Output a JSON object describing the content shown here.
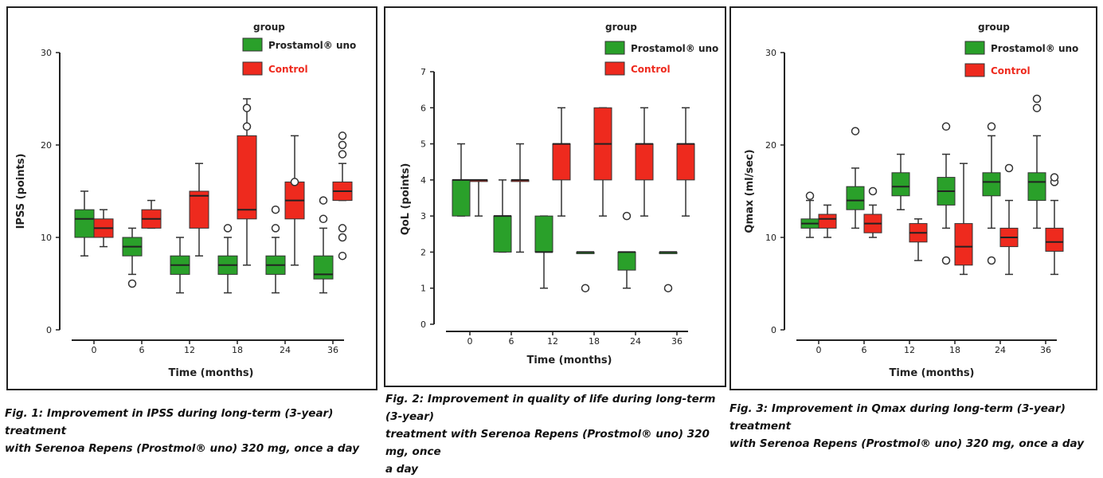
{
  "colors": {
    "prostamol": "#2aa02a",
    "control": "#ee2a1e",
    "axis": "#222222"
  },
  "panels": [
    {
      "legend": {
        "title": "group",
        "items": [
          "Prostamol® uno",
          "Control"
        ]
      },
      "caption_lines": [
        "Fig. 1: Improvement in IPSS during long-term (3-year) treatment",
        "with Serenoa Repens (Prostmol® uno) 320 mg, once a day"
      ]
    },
    {
      "legend": {
        "title": "group",
        "items": [
          "Prostamol® uno",
          "Control"
        ]
      },
      "caption_lines": [
        "Fig. 2: Improvement in quality of life during long-term (3-year)",
        "treatment with Serenoa Repens (Prostmol® uno) 320 mg, once",
        "a day"
      ]
    },
    {
      "legend": {
        "title": "group",
        "items": [
          "Prostamol® uno",
          "Control"
        ]
      },
      "caption_lines": [
        "Fig. 3: Improvement in Qmax during long-term (3-year) treatment",
        "with Serenoa Repens (Prostmol® uno) 320 mg, once a day"
      ]
    }
  ],
  "chart_data": [
    {
      "type": "box",
      "xlabel": "Time (months)",
      "ylabel": "IPSS (points)",
      "ylim": [
        0,
        30
      ],
      "yticks": [
        0,
        10,
        20,
        30
      ],
      "categories": [
        "0",
        "6",
        "12",
        "18",
        "24",
        "36"
      ],
      "series": [
        {
          "name": "Prostamol® uno",
          "boxes": [
            {
              "min": 8,
              "q1": 10,
              "median": 12,
              "q3": 13,
              "max": 15,
              "outliers": []
            },
            {
              "min": 6,
              "q1": 8,
              "median": 9,
              "q3": 10,
              "max": 11,
              "outliers": [
                5
              ]
            },
            {
              "min": 4,
              "q1": 6,
              "median": 7,
              "q3": 8,
              "max": 10,
              "outliers": []
            },
            {
              "min": 4,
              "q1": 6,
              "median": 7,
              "q3": 8,
              "max": 10,
              "outliers": [
                11
              ]
            },
            {
              "min": 4,
              "q1": 6,
              "median": 7,
              "q3": 8,
              "max": 10,
              "outliers": [
                11,
                13
              ]
            },
            {
              "min": 4,
              "q1": 5.5,
              "median": 6,
              "q3": 8,
              "max": 11,
              "outliers": [
                12,
                14
              ]
            }
          ]
        },
        {
          "name": "Control",
          "boxes": [
            {
              "min": 9,
              "q1": 10,
              "median": 11,
              "q3": 12,
              "max": 13,
              "outliers": []
            },
            {
              "min": 11,
              "q1": 11,
              "median": 12,
              "q3": 13,
              "max": 14,
              "outliers": []
            },
            {
              "min": 8,
              "q1": 11,
              "median": 14.5,
              "q3": 15,
              "max": 18,
              "outliers": []
            },
            {
              "min": 7,
              "q1": 12,
              "median": 13,
              "q3": 21,
              "max": 25,
              "outliers": [
                22,
                24
              ]
            },
            {
              "min": 7,
              "q1": 12,
              "median": 14,
              "q3": 16,
              "max": 21,
              "outliers": [
                16
              ]
            },
            {
              "min": 14,
              "q1": 14,
              "median": 15,
              "q3": 16,
              "max": 18,
              "outliers": [
                8,
                10,
                11,
                19,
                20,
                21
              ]
            }
          ]
        }
      ]
    },
    {
      "type": "box",
      "xlabel": "Time (months)",
      "ylabel": "QoL (points)",
      "ylim": [
        0,
        7
      ],
      "yticks": [
        0,
        1,
        2,
        3,
        4,
        5,
        6,
        7
      ],
      "categories": [
        "0",
        "6",
        "12",
        "18",
        "24",
        "36"
      ],
      "series": [
        {
          "name": "Prostamol® uno",
          "boxes": [
            {
              "min": 3,
              "q1": 3,
              "median": 4,
              "q3": 4,
              "max": 5,
              "outliers": []
            },
            {
              "min": 2,
              "q1": 2,
              "median": 3,
              "q3": 3,
              "max": 4,
              "outliers": []
            },
            {
              "min": 1,
              "q1": 2,
              "median": 2,
              "q3": 3,
              "max": 3,
              "outliers": []
            },
            {
              "min": 2,
              "q1": 2,
              "median": 2,
              "q3": 2,
              "max": 2,
              "outliers": [
                1
              ]
            },
            {
              "min": 1,
              "q1": 1.5,
              "median": 2,
              "q3": 2,
              "max": 2,
              "outliers": [
                3
              ]
            },
            {
              "min": 2,
              "q1": 2,
              "median": 2,
              "q3": 2,
              "max": 2,
              "outliers": [
                1
              ]
            }
          ]
        },
        {
          "name": "Control",
          "boxes": [
            {
              "min": 3,
              "q1": 4,
              "median": 4,
              "q3": 4,
              "max": 4,
              "outliers": []
            },
            {
              "min": 2,
              "q1": 4,
              "median": 4,
              "q3": 4,
              "max": 5,
              "outliers": []
            },
            {
              "min": 3,
              "q1": 4,
              "median": 5,
              "q3": 5,
              "max": 6,
              "outliers": []
            },
            {
              "min": 3,
              "q1": 4,
              "median": 5,
              "q3": 6,
              "max": 6,
              "outliers": []
            },
            {
              "min": 3,
              "q1": 4,
              "median": 5,
              "q3": 5,
              "max": 6,
              "outliers": []
            },
            {
              "min": 3,
              "q1": 4,
              "median": 5,
              "q3": 5,
              "max": 6,
              "outliers": []
            }
          ]
        }
      ]
    },
    {
      "type": "box",
      "xlabel": "Time (months)",
      "ylabel": "Qmax (ml/sec)",
      "ylim": [
        0,
        30
      ],
      "yticks": [
        0,
        10,
        20,
        30
      ],
      "categories": [
        "0",
        "6",
        "12",
        "18",
        "24",
        "36"
      ],
      "series": [
        {
          "name": "Prostamol® uno",
          "boxes": [
            {
              "min": 10,
              "q1": 11,
              "median": 11.5,
              "q3": 12,
              "max": 14,
              "outliers": [
                14.5
              ]
            },
            {
              "min": 11,
              "q1": 13,
              "median": 14,
              "q3": 15.5,
              "max": 17.5,
              "outliers": [
                21.5
              ]
            },
            {
              "min": 13,
              "q1": 14.5,
              "median": 15.5,
              "q3": 17,
              "max": 19,
              "outliers": []
            },
            {
              "min": 11,
              "q1": 13.5,
              "median": 15,
              "q3": 16.5,
              "max": 19,
              "outliers": [
                7.5,
                22
              ]
            },
            {
              "min": 11,
              "q1": 14.5,
              "median": 16,
              "q3": 17,
              "max": 21,
              "outliers": [
                7.5,
                22
              ]
            },
            {
              "min": 11,
              "q1": 14,
              "median": 16,
              "q3": 17,
              "max": 21,
              "outliers": [
                24,
                25
              ]
            }
          ]
        },
        {
          "name": "Control",
          "boxes": [
            {
              "min": 10,
              "q1": 11,
              "median": 12,
              "q3": 12.5,
              "max": 13.5,
              "outliers": []
            },
            {
              "min": 10,
              "q1": 10.5,
              "median": 11.5,
              "q3": 12.5,
              "max": 13.5,
              "outliers": [
                15
              ]
            },
            {
              "min": 7.5,
              "q1": 9.5,
              "median": 10.5,
              "q3": 11.5,
              "max": 12,
              "outliers": []
            },
            {
              "min": 6,
              "q1": 7,
              "median": 9,
              "q3": 11.5,
              "max": 18,
              "outliers": []
            },
            {
              "min": 6,
              "q1": 9,
              "median": 10,
              "q3": 11,
              "max": 14,
              "outliers": [
                17.5
              ]
            },
            {
              "min": 6,
              "q1": 8.5,
              "median": 9.5,
              "q3": 11,
              "max": 14,
              "outliers": [
                16,
                16.5
              ]
            }
          ]
        }
      ]
    }
  ]
}
